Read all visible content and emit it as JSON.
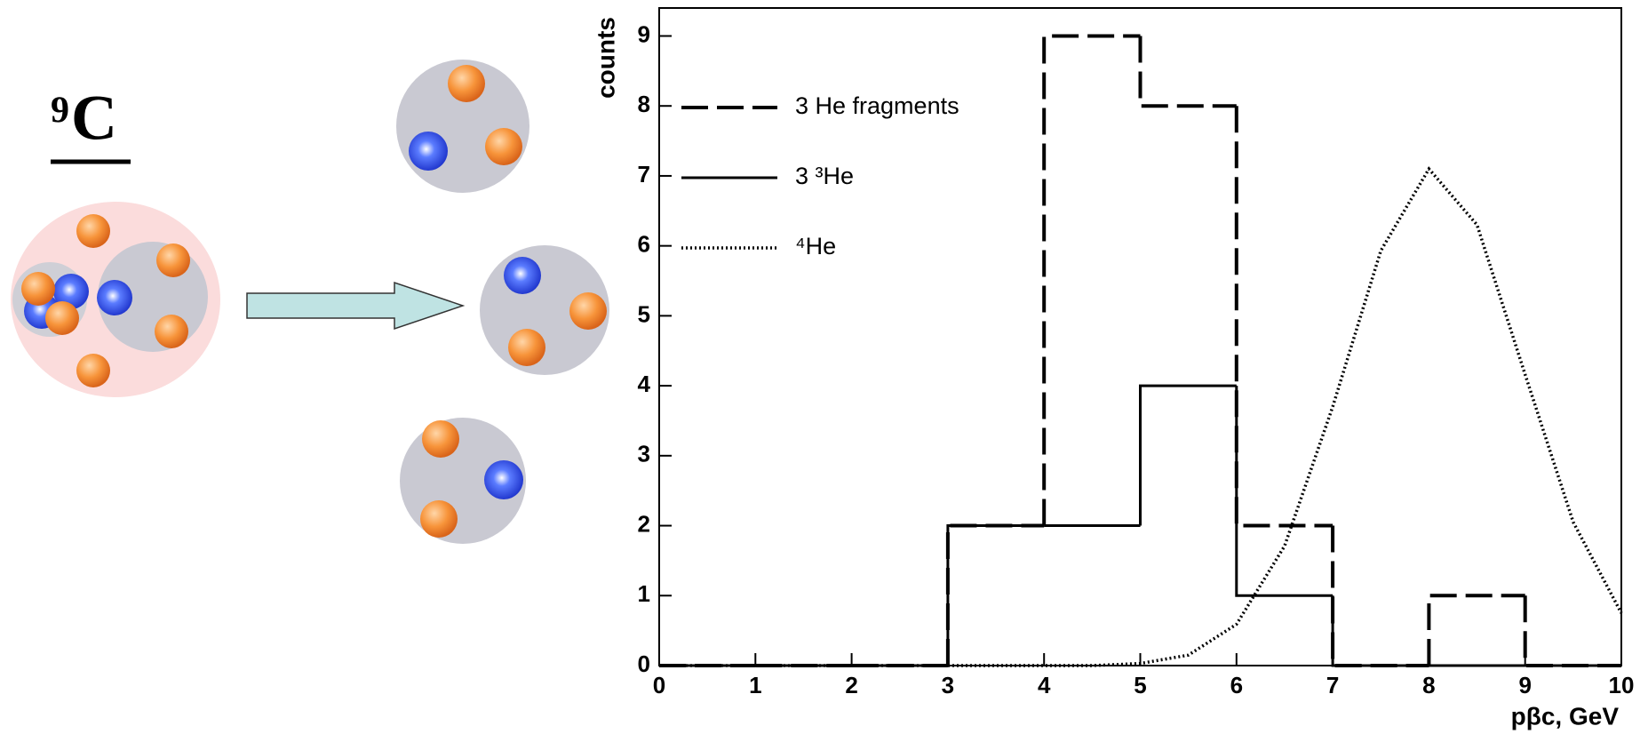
{
  "diagram": {
    "mass_number": "9",
    "element": "C"
  },
  "chart_data": {
    "type": "histogram",
    "x_label": "pβc, GeV",
    "y_label": "counts",
    "bins": [
      0,
      1,
      2,
      3,
      4,
      5,
      6,
      7,
      8,
      9,
      10
    ],
    "xlim": [
      0,
      10
    ],
    "ylim": [
      0,
      9.4
    ],
    "xticks": [
      0,
      1,
      2,
      3,
      4,
      5,
      6,
      7,
      8,
      9,
      10
    ],
    "yticks": [
      0,
      1,
      2,
      3,
      4,
      5,
      6,
      7,
      8,
      9
    ],
    "series": [
      {
        "name": "3 He  fragments",
        "color": "#000000",
        "style": "dashed",
        "values": [
          0,
          0,
          0,
          2,
          9,
          8,
          2,
          0,
          1,
          0
        ]
      },
      {
        "name": "3 ³He",
        "color": "#000000",
        "style": "solid",
        "values": [
          0,
          0,
          0,
          2,
          2,
          4,
          1,
          0,
          0,
          0
        ]
      },
      {
        "name": "⁴He",
        "color": "#000000",
        "style": "dotted",
        "x": [
          0,
          4.5,
          5,
          5.5,
          6,
          6.5,
          7,
          7.5,
          8,
          8.5,
          9,
          9.5,
          10
        ],
        "values": [
          0,
          0,
          0.03,
          0.15,
          0.59,
          1.71,
          3.7,
          5.93,
          7.1,
          6.3,
          4.16,
          2.05,
          0.75
        ]
      }
    ]
  }
}
